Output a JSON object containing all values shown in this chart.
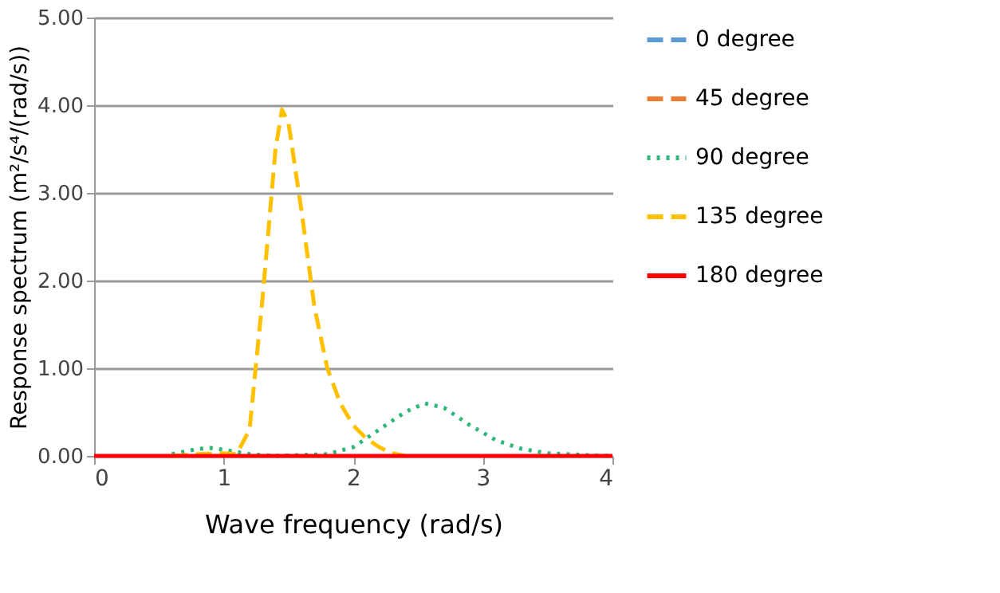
{
  "chart_data": {
    "type": "line",
    "xlabel": "Wave frequency  (rad/s)",
    "ylabel": "Response spectrum (m²/s⁴/(rad/s))",
    "xlim": [
      0,
      4
    ],
    "xticks": [
      0,
      1,
      2,
      3,
      4
    ],
    "ylim": [
      0,
      5
    ],
    "yticks": [
      {
        "value": 0,
        "label": "0.00"
      },
      {
        "value": 1,
        "label": "1.00"
      },
      {
        "value": 2,
        "label": "2.00"
      },
      {
        "value": 3,
        "label": "3.00"
      },
      {
        "value": 4,
        "label": "4.00"
      },
      {
        "value": 5,
        "label": "5.00"
      }
    ],
    "grid": "y",
    "legend": "right",
    "marker": "none",
    "series": [
      {
        "name": "0 degree",
        "color": "#5b9bd5",
        "line_style": "dashed"
      },
      {
        "name": "45 degree",
        "color": "#ed7d31",
        "line_style": "dashed"
      },
      {
        "name": "90 degree",
        "color": "#2fb67a",
        "line_style": "dotted",
        "x": [
          0.6,
          0.8,
          0.9,
          1.0,
          1.2,
          1.4,
          1.8,
          2.0,
          2.2,
          2.4,
          2.55,
          2.7,
          2.9,
          3.1,
          3.3,
          3.5,
          3.8,
          4.0
        ],
        "values": [
          0.02,
          0.08,
          0.09,
          0.07,
          0.02,
          0,
          0.02,
          0.1,
          0.3,
          0.5,
          0.6,
          0.55,
          0.35,
          0.18,
          0.08,
          0.03,
          0.01,
          0
        ]
      },
      {
        "name": "135 degree",
        "color": "#ffc000",
        "line_style": "dashed",
        "x": [
          0.6,
          0.8,
          1.0,
          1.1,
          1.2,
          1.3,
          1.4,
          1.45,
          1.5,
          1.6,
          1.7,
          1.8,
          1.9,
          2.0,
          2.1,
          2.2,
          2.3,
          2.4
        ],
        "values": [
          0,
          0.02,
          0.03,
          0.02,
          0.3,
          1.8,
          3.5,
          3.95,
          3.8,
          2.8,
          1.7,
          1.0,
          0.6,
          0.35,
          0.2,
          0.1,
          0.03,
          0
        ]
      },
      {
        "name": "180 degree",
        "color": "#ff0000",
        "line_style": "solid",
        "x": [
          0,
          0.5,
          1,
          1.5,
          2,
          2.5,
          3,
          3.5,
          4
        ],
        "values": [
          0,
          0,
          0,
          0,
          0,
          0,
          0,
          0,
          0
        ]
      }
    ]
  }
}
